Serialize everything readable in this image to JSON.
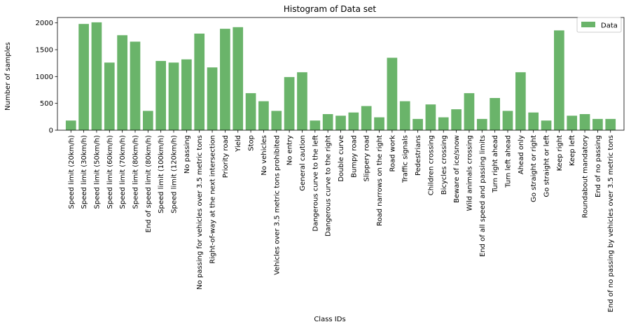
{
  "chart_data": {
    "type": "bar",
    "title": "Histogram of Data set",
    "xlabel": "Class IDs",
    "ylabel": "Number of samples",
    "ylim": [
      0,
      2100
    ],
    "yticks": [
      0,
      500,
      1000,
      1500,
      2000
    ],
    "grid": false,
    "legend_position": "top-right",
    "series": [
      {
        "name": "Data",
        "color": "#6ab46a",
        "values": [
          180,
          1980,
          2010,
          1260,
          1770,
          1650,
          360,
          1290,
          1260,
          1320,
          1800,
          1170,
          1890,
          1920,
          690,
          540,
          360,
          990,
          1080,
          180,
          300,
          270,
          330,
          450,
          240,
          1350,
          540,
          210,
          480,
          240,
          390,
          690,
          210,
          600,
          360,
          1080,
          330,
          180,
          1860,
          270,
          300,
          210,
          210
        ]
      }
    ],
    "categories": [
      "Speed limit (20km/h)",
      "Speed limit (30km/h)",
      "Speed limit (50km/h)",
      "Speed limit (60km/h)",
      "Speed limit (70km/h)",
      "Speed limit (80km/h)",
      "End of speed limit (80km/h)",
      "Speed limit (100km/h)",
      "Speed limit (120km/h)",
      "No passing",
      "No passing for vehicles over 3.5 metric tons",
      "Right-of-way at the next intersection",
      "Priority road",
      "Yield",
      "Stop",
      "No vehicles",
      "Vehicles over 3.5 metric tons prohibited",
      "No entry",
      "General caution",
      "Dangerous curve to the left",
      "Dangerous curve to the right",
      "Double curve",
      "Bumpy road",
      "Slippery road",
      "Road narrows on the right",
      "Road work",
      "Traffic signals",
      "Pedestrians",
      "Children crossing",
      "Bicycles crossing",
      "Beware of ice/snow",
      "Wild animals crossing",
      "End of all speed and passing limits",
      "Turn right ahead",
      "Turn left ahead",
      "Ahead only",
      "Go straight or right",
      "Go straight or left",
      "Keep right",
      "Keep left",
      "Roundabout mandatory",
      "End of no passing",
      "End of no passing by vehicles over 3.5 metric tons"
    ]
  }
}
